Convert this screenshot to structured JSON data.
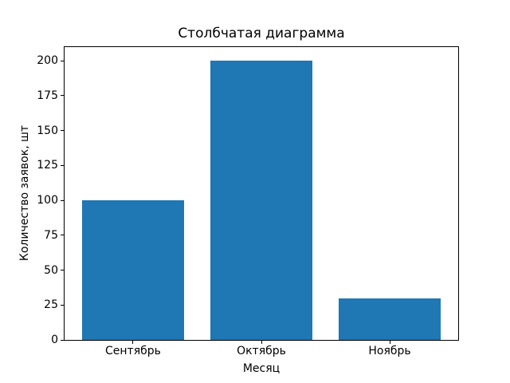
{
  "chart_data": {
    "type": "bar",
    "title": "Столбчатая диаграмма",
    "xlabel": "Месяц",
    "ylabel": "Количество заявок, шт",
    "categories": [
      "Сентябрь",
      "Октябрь",
      "Ноябрь"
    ],
    "values": [
      100,
      200,
      30
    ],
    "ylim": [
      0,
      210
    ],
    "yticks": [
      0,
      25,
      50,
      75,
      100,
      125,
      150,
      175,
      200
    ],
    "bar_color": "#1f77b4",
    "axis_color": "#000000",
    "background_color": "#ffffff",
    "grid": false,
    "legend": false,
    "bar_width_fraction": 0.8
  }
}
